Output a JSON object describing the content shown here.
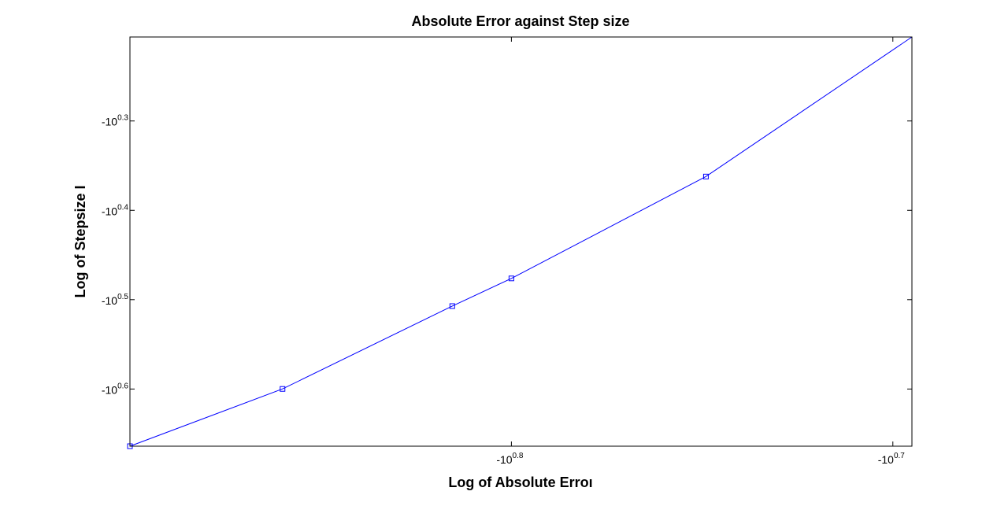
{
  "chart_data": {
    "type": "line",
    "title": "Absolute Error against Step size",
    "xlabel": "Log of Absolute Erroı",
    "ylabel": "Log of Stepsize I",
    "x_scale": "-log",
    "y_scale": "-log",
    "x_exponent_range": [
      0.9,
      0.695
    ],
    "y_exponent_range": [
      0.664,
      0.206
    ],
    "x_ticks": [
      {
        "base": "-10",
        "exp": "0.8",
        "value": 0.8
      },
      {
        "base": "-10",
        "exp": "0.7",
        "value": 0.7
      }
    ],
    "y_ticks": [
      {
        "base": "-10",
        "exp": "0.3",
        "value": 0.3
      },
      {
        "base": "-10",
        "exp": "0.4",
        "value": 0.4
      },
      {
        "base": "-10",
        "exp": "0.5",
        "value": 0.5
      },
      {
        "base": "-10",
        "exp": "0.6",
        "value": 0.6
      }
    ],
    "series": [
      {
        "color": "#0000ff",
        "marker": "square",
        "points": [
          {
            "x_exp": 0.9,
            "y_exp": 0.664,
            "marker": true
          },
          {
            "x_exp": 0.86,
            "y_exp": 0.5999,
            "marker": true
          },
          {
            "x_exp": 0.8155,
            "y_exp": 0.5072,
            "marker": true
          },
          {
            "x_exp": 0.8,
            "y_exp": 0.4762,
            "marker": true
          },
          {
            "x_exp": 0.749,
            "y_exp": 0.3622,
            "marker": true
          },
          {
            "x_exp": 0.695,
            "y_exp": 0.206,
            "marker": false
          }
        ]
      }
    ],
    "grid": false,
    "legend": "none"
  }
}
